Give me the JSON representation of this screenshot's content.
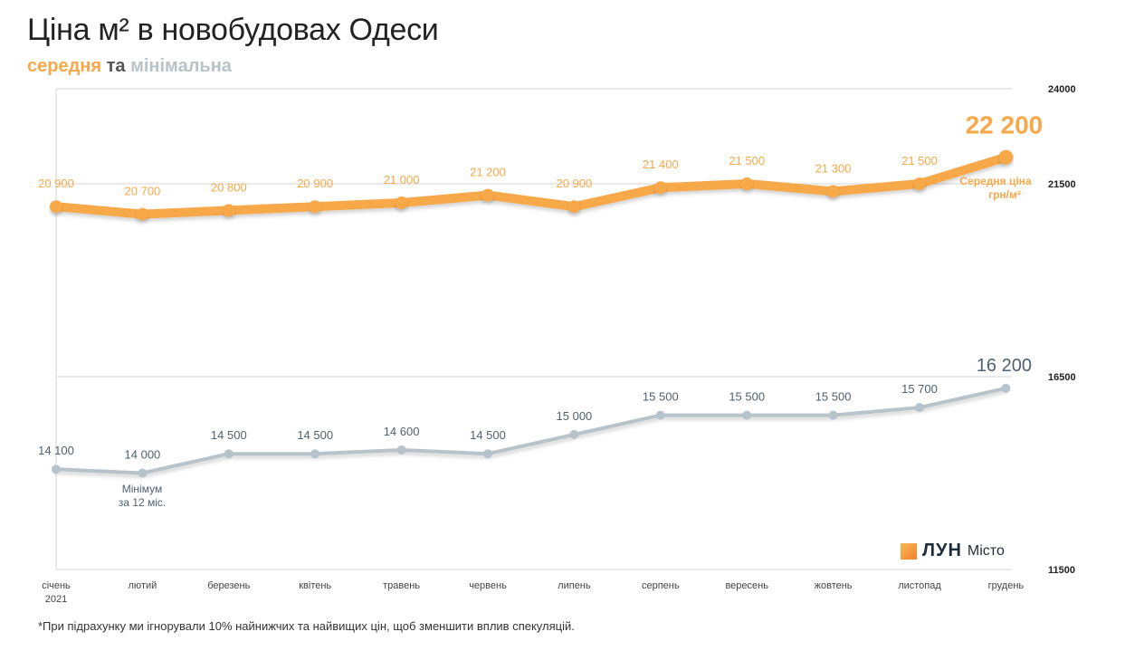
{
  "header": {
    "title": "Ціна м² в новобудовах Одеси",
    "subtitle_avg": "середня",
    "subtitle_and": " та ",
    "subtitle_min": "мінімальна"
  },
  "chart_data": {
    "type": "line",
    "categories": [
      "січень",
      "лютий",
      "березень",
      "квітень",
      "травень",
      "червень",
      "липень",
      "серпень",
      "вересень",
      "жовтень",
      "листопад",
      "грудень"
    ],
    "category_sublabels": [
      "2021",
      "",
      "",
      "",
      "",
      "",
      "",
      "",
      "",
      "",
      "",
      ""
    ],
    "series": [
      {
        "id": "avg",
        "values": [
          20900,
          20700,
          20800,
          20900,
          21000,
          21200,
          20900,
          21400,
          21500,
          21300,
          21500,
          22200
        ],
        "labels": [
          "20 900",
          "20 700",
          "20 800",
          "20 900",
          "21 000",
          "21 200",
          "20 900",
          "21 400",
          "21 500",
          "21 300",
          "21 500",
          "22 200"
        ],
        "color": "#f7a84a"
      },
      {
        "id": "min",
        "values": [
          14100,
          14000,
          14500,
          14500,
          14600,
          14500,
          15000,
          15500,
          15500,
          15500,
          15700,
          16200
        ],
        "labels": [
          "14 100",
          "14 000",
          "14 500",
          "14 500",
          "14 600",
          "14 500",
          "15 000",
          "15 500",
          "15 500",
          "15 500",
          "15 700",
          "16 200"
        ],
        "color": "#b7c3cb",
        "label_color": "#4f6170"
      }
    ],
    "y_ticks": [
      {
        "value": 24000,
        "label": "24000"
      },
      {
        "value": 21500,
        "label": "21500"
      },
      {
        "value": 16500,
        "label": "16500"
      },
      {
        "value": 11500,
        "label": "11500"
      }
    ],
    "annotations": {
      "avg_line1": "Середня ціна",
      "avg_line2": "грн/м²",
      "min_line1": "Мінімум",
      "min_line2": "за 12 міс."
    }
  },
  "brand": {
    "name": "ЛУН",
    "sub": "Місто"
  },
  "footnote": "*При підрахунку ми ігнорували 10% найнижчих та найвищих цін, щоб зменшити вплив спекуляцій."
}
